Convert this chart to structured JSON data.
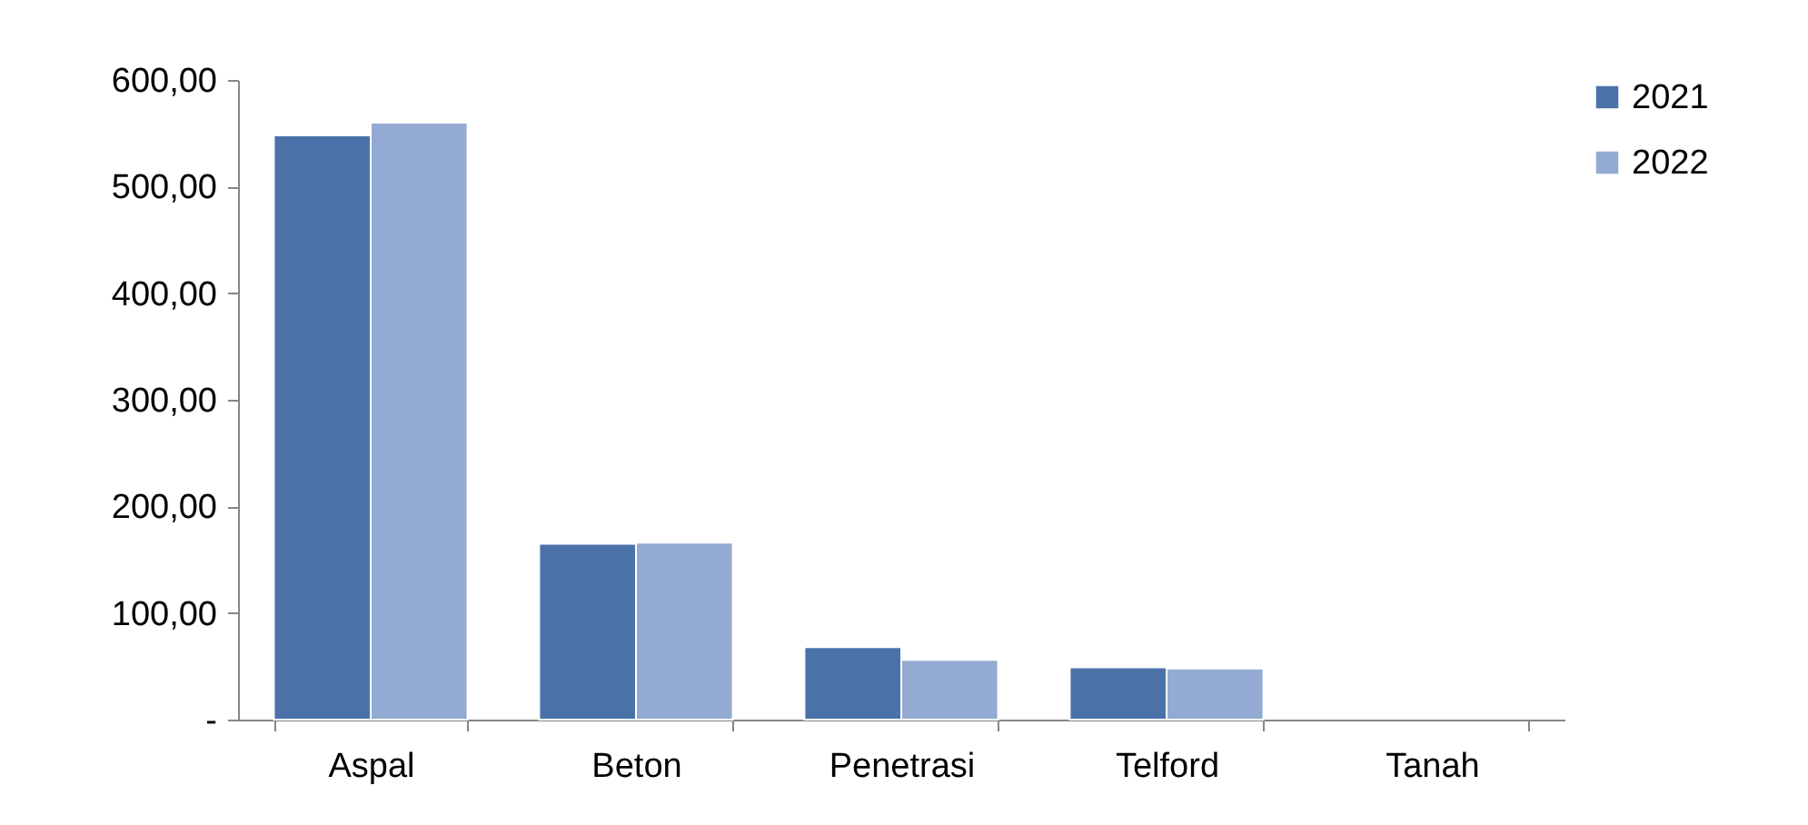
{
  "chart_data": {
    "type": "bar",
    "categories": [
      "Aspal",
      "Beton",
      "Penetrasi",
      "Telford",
      "Tanah"
    ],
    "series": [
      {
        "name": "2021",
        "color": "#4a72a8",
        "values": [
          548,
          165,
          68,
          49,
          null
        ]
      },
      {
        "name": "2022",
        "color": "#93abd3",
        "values": [
          560,
          166,
          56,
          48,
          null
        ]
      }
    ],
    "ylim": [
      0,
      600
    ],
    "yticks": [
      {
        "value": 0,
        "label": "-"
      },
      {
        "value": 100,
        "label": "100,00"
      },
      {
        "value": 200,
        "label": "200,00"
      },
      {
        "value": 300,
        "label": "300,00"
      },
      {
        "value": 400,
        "label": "400,00"
      },
      {
        "value": 500,
        "label": "500,00"
      },
      {
        "value": 600,
        "label": "600,00"
      }
    ],
    "grid": false,
    "legend": "right"
  }
}
